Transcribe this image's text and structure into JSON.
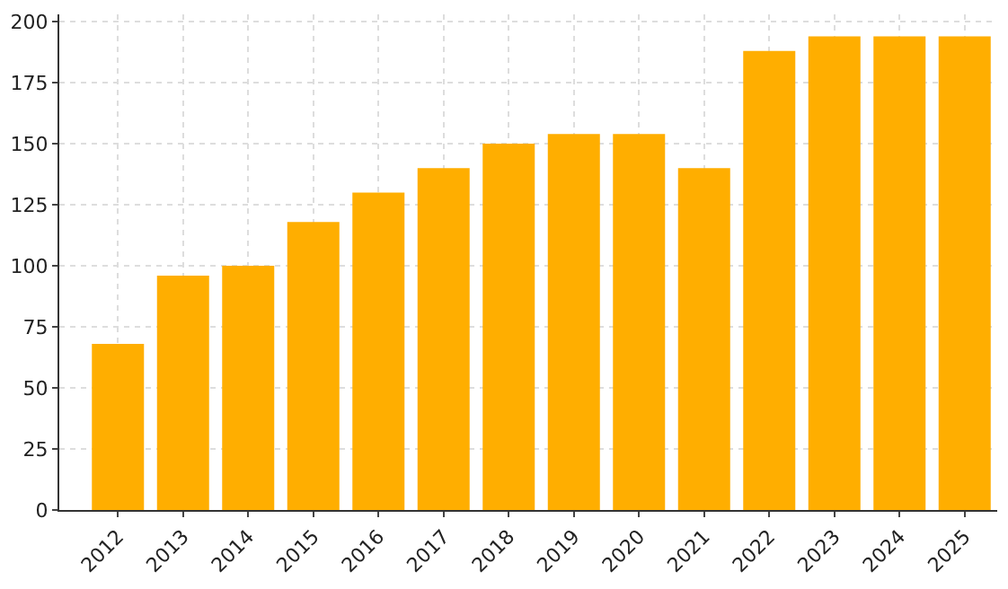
{
  "chart_data": {
    "type": "bar",
    "categories": [
      "2012",
      "2013",
      "2014",
      "2015",
      "2016",
      "2017",
      "2018",
      "2019",
      "2020",
      "2021",
      "2022",
      "2023",
      "2024",
      "2025"
    ],
    "values": [
      68,
      96,
      100,
      118,
      130,
      140,
      150,
      154,
      154,
      140,
      188,
      194,
      194,
      194
    ],
    "color": "#ffae00",
    "ylim": [
      0,
      203
    ],
    "yticks": [
      0,
      25,
      50,
      75,
      100,
      125,
      150,
      175,
      200
    ],
    "grid": true
  }
}
